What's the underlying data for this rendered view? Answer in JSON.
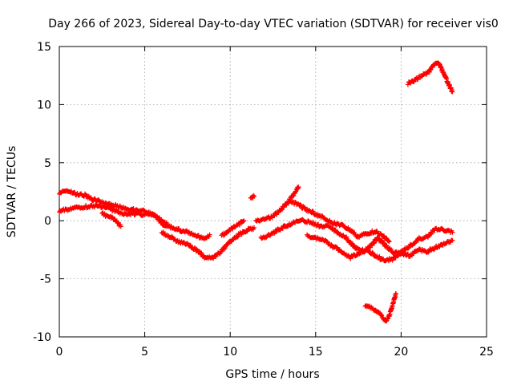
{
  "chart_data": {
    "type": "scatter",
    "title": "Day 266 of 2023, Sidereal Day-to-day VTEC variation (SDTVAR) for receiver vis0",
    "xlabel": "GPS time / hours",
    "ylabel": "SDTVAR / TECUs",
    "xlim": [
      0,
      25
    ],
    "ylim": [
      -10,
      15
    ],
    "x_ticks": [
      0,
      5,
      10,
      15,
      20,
      25
    ],
    "y_ticks": [
      -10,
      -5,
      0,
      5,
      10,
      15
    ],
    "x_tick_labels": [
      "0",
      "5",
      "10",
      "15",
      "20",
      "25"
    ],
    "y_tick_labels": [
      "-10",
      "-5",
      "0",
      "5",
      "10",
      "15"
    ],
    "grid": true,
    "marker": "+",
    "color": "#ff0000",
    "series": [
      {
        "name": "track-1",
        "points": [
          [
            0,
            2.4
          ],
          [
            0.5,
            2.6
          ],
          [
            1,
            2.3
          ],
          [
            1.5,
            2.2
          ],
          [
            2,
            1.8
          ],
          [
            2.5,
            1.6
          ],
          [
            3,
            1.4
          ],
          [
            3.5,
            1.2
          ],
          [
            4,
            1.0
          ],
          [
            4.5,
            0.9
          ],
          [
            5,
            0.8
          ],
          [
            5.5,
            0.5
          ],
          [
            6,
            0.0
          ],
          [
            6.5,
            -0.5
          ],
          [
            7,
            -0.8
          ],
          [
            7.5,
            -1.0
          ],
          [
            8,
            -1.3
          ],
          [
            8.5,
            -1.5
          ],
          [
            8.8,
            -1.2
          ]
        ]
      },
      {
        "name": "track-2",
        "points": [
          [
            0,
            0.8
          ],
          [
            0.5,
            1.0
          ],
          [
            1,
            1.1
          ],
          [
            1.5,
            1.2
          ],
          [
            2,
            1.3
          ],
          [
            2.5,
            1.2
          ],
          [
            3,
            1.0
          ],
          [
            3.5,
            0.7
          ],
          [
            4,
            0.6
          ],
          [
            4.5,
            0.6
          ],
          [
            5,
            0.5
          ],
          [
            5.5,
            0.6
          ],
          [
            6,
            -0.2
          ],
          [
            6.3,
            -0.5
          ]
        ]
      },
      {
        "name": "track-3",
        "points": [
          [
            2.5,
            0.6
          ],
          [
            3,
            0.3
          ],
          [
            3.3,
            0.0
          ],
          [
            3.6,
            -0.5
          ]
        ]
      },
      {
        "name": "track-4",
        "points": [
          [
            6,
            -1.0
          ],
          [
            6.5,
            -1.4
          ],
          [
            7,
            -1.8
          ],
          [
            7.5,
            -2.0
          ],
          [
            8,
            -2.5
          ],
          [
            8.5,
            -3.1
          ],
          [
            9,
            -3.2
          ],
          [
            9.5,
            -2.6
          ],
          [
            10,
            -1.8
          ],
          [
            10.5,
            -1.2
          ],
          [
            11,
            -0.8
          ],
          [
            11.4,
            -0.6
          ]
        ]
      },
      {
        "name": "track-5",
        "points": [
          [
            9.5,
            -1.3
          ],
          [
            10,
            -0.8
          ],
          [
            10.5,
            -0.3
          ],
          [
            10.8,
            0.0
          ]
        ]
      },
      {
        "name": "track-6",
        "points": [
          [
            11.2,
            1.9
          ],
          [
            11.4,
            2.1
          ]
        ]
      },
      {
        "name": "track-7",
        "points": [
          [
            11.5,
            0.0
          ],
          [
            12,
            0.1
          ],
          [
            12.5,
            0.4
          ],
          [
            13,
            1.0
          ],
          [
            13.5,
            1.8
          ],
          [
            14,
            2.9
          ]
        ]
      },
      {
        "name": "track-8",
        "points": [
          [
            11.8,
            -1.5
          ],
          [
            12.3,
            -1.2
          ],
          [
            12.8,
            -0.8
          ],
          [
            13.3,
            -0.4
          ],
          [
            13.8,
            -0.1
          ],
          [
            14.3,
            0.0
          ],
          [
            14.8,
            -0.2
          ],
          [
            15.3,
            -0.5
          ],
          [
            15.8,
            -0.5
          ],
          [
            16.3,
            -1.0
          ],
          [
            16.8,
            -1.5
          ],
          [
            17.3,
            -2.3
          ],
          [
            17.8,
            -2.6
          ],
          [
            18.2,
            -2.2
          ],
          [
            18.6,
            -1.5
          ],
          [
            19,
            -2.0
          ],
          [
            19.5,
            -2.7
          ],
          [
            20,
            -2.7
          ],
          [
            20.5,
            -2.2
          ],
          [
            21,
            -1.6
          ],
          [
            21.5,
            -1.4
          ],
          [
            22,
            -0.7
          ],
          [
            22.5,
            -0.8
          ],
          [
            23,
            -1.0
          ]
        ]
      },
      {
        "name": "track-9",
        "points": [
          [
            13.5,
            1.7
          ],
          [
            14,
            1.4
          ],
          [
            14.5,
            0.9
          ],
          [
            15,
            0.6
          ],
          [
            15.5,
            0.2
          ],
          [
            16,
            -0.2
          ],
          [
            16.5,
            -0.4
          ],
          [
            17,
            -0.8
          ],
          [
            17.5,
            -1.4
          ],
          [
            18,
            -1.1
          ],
          [
            18.5,
            -0.9
          ],
          [
            19,
            -1.4
          ],
          [
            19.3,
            -1.8
          ]
        ]
      },
      {
        "name": "track-10",
        "points": [
          [
            14.5,
            -1.3
          ],
          [
            15,
            -1.5
          ],
          [
            15.5,
            -1.7
          ],
          [
            16,
            -2.2
          ],
          [
            16.5,
            -2.6
          ],
          [
            17,
            -3.2
          ],
          [
            17.5,
            -2.8
          ],
          [
            18,
            -2.5
          ],
          [
            18.5,
            -3.0
          ],
          [
            19,
            -3.4
          ],
          [
            19.5,
            -3.3
          ],
          [
            20,
            -2.8
          ],
          [
            20.5,
            -3.0
          ],
          [
            21,
            -2.5
          ],
          [
            21.5,
            -2.7
          ],
          [
            22,
            -2.3
          ],
          [
            22.5,
            -2.0
          ],
          [
            23,
            -1.7
          ]
        ]
      },
      {
        "name": "track-11",
        "points": [
          [
            17.9,
            -7.3
          ],
          [
            18.4,
            -7.6
          ],
          [
            18.8,
            -8.1
          ],
          [
            19.1,
            -8.6
          ],
          [
            19.3,
            -8.2
          ],
          [
            19.5,
            -7.3
          ],
          [
            19.7,
            -6.3
          ]
        ]
      },
      {
        "name": "track-12",
        "points": [
          [
            20.4,
            11.8
          ],
          [
            20.8,
            12.1
          ],
          [
            21.2,
            12.5
          ],
          [
            21.6,
            12.8
          ],
          [
            22,
            13.5
          ],
          [
            22.2,
            13.6
          ],
          [
            22.5,
            12.6
          ],
          [
            22.7,
            12.0
          ],
          [
            23,
            11.1
          ]
        ]
      }
    ]
  }
}
